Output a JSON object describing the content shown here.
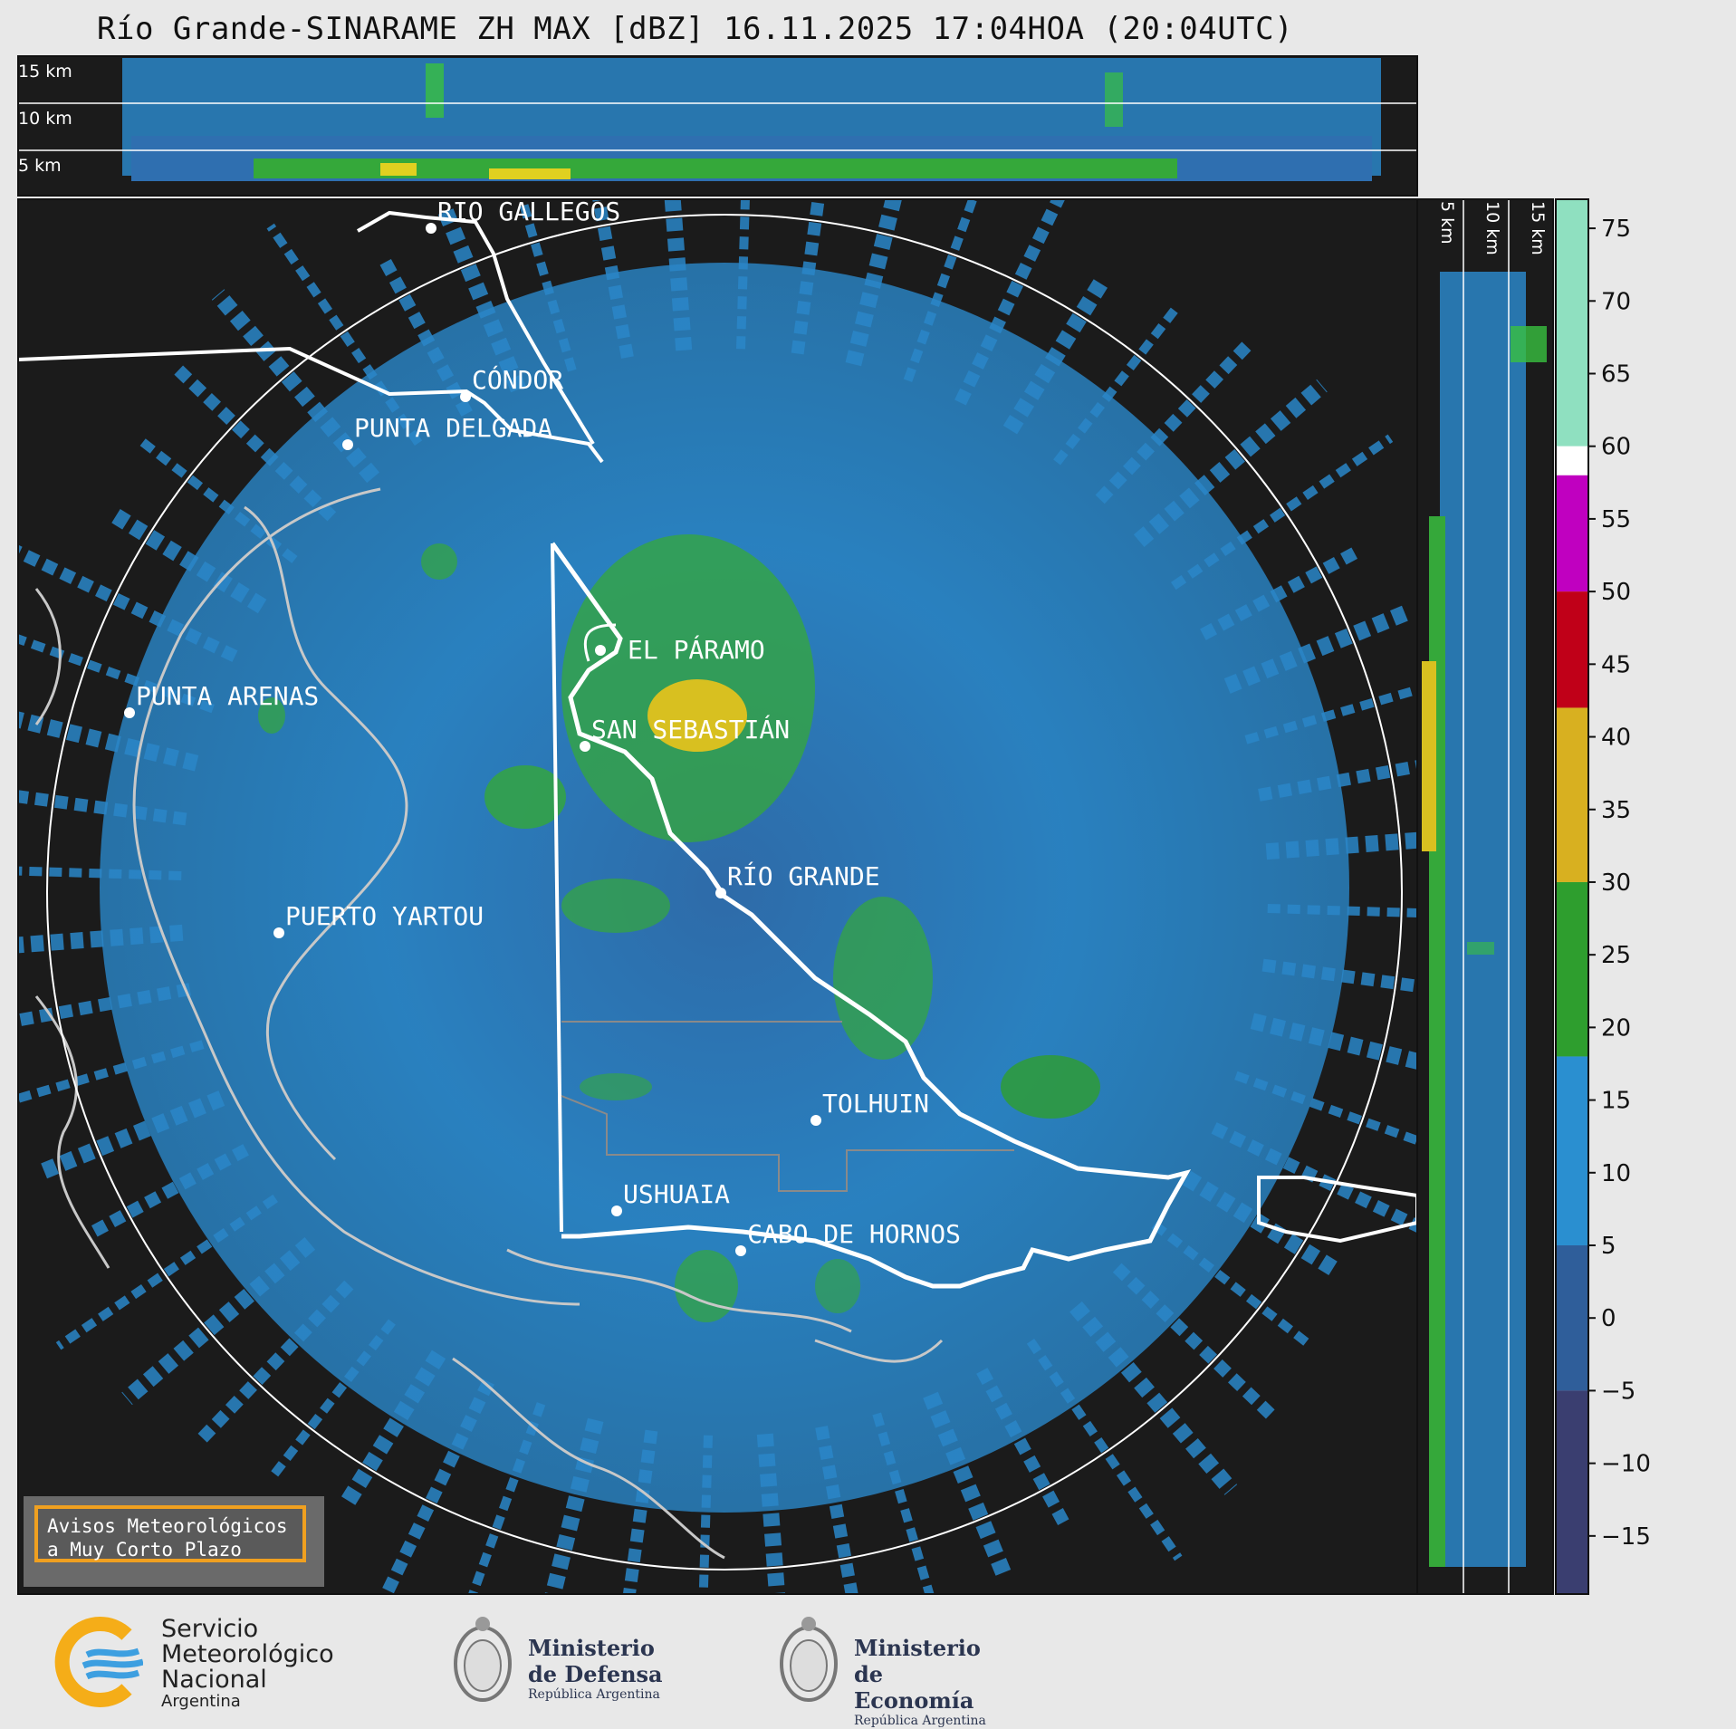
{
  "title": "Río Grande-SINARAME ZH MAX [dBZ] 16.11.2025 17:04HOA (20:04UTC)",
  "top_section_heights": [
    "15 km",
    "10 km",
    "5 km"
  ],
  "side_section_heights": [
    "5 km",
    "10 km",
    "15 km"
  ],
  "colorbar": {
    "unit": "dBZ",
    "ticks": [
      "75",
      "70",
      "65",
      "60",
      "55",
      "50",
      "45",
      "40",
      "35",
      "30",
      "25",
      "20",
      "15",
      "10",
      "5",
      "0",
      "−5",
      "−10",
      "−15"
    ],
    "range": [
      -19,
      77
    ],
    "bands": [
      {
        "from": 60,
        "to": 77,
        "color": "#8fe0c0"
      },
      {
        "from": 58,
        "to": 60,
        "color": "#ffffff"
      },
      {
        "from": 50,
        "to": 58,
        "color": "#c000c0"
      },
      {
        "from": 42,
        "to": 50,
        "color": "#c00018"
      },
      {
        "from": 30,
        "to": 42,
        "color": "#d8b020"
      },
      {
        "from": 18,
        "to": 30,
        "color": "#2e9e2e"
      },
      {
        "from": 5,
        "to": 18,
        "color": "#2a8fd0"
      },
      {
        "from": -5,
        "to": 5,
        "color": "#2f5e9a"
      },
      {
        "from": -19,
        "to": -5,
        "color": "#3a3e70"
      }
    ]
  },
  "cities": [
    {
      "name": "RÍO GALLEGOS"
    },
    {
      "name": "CÓNDOR"
    },
    {
      "name": "PUNTA DELGADA"
    },
    {
      "name": "PUNTA ARENAS"
    },
    {
      "name": "EL PÁRAMO"
    },
    {
      "name": "SAN SEBASTIÁN"
    },
    {
      "name": "RÍO GRANDE"
    },
    {
      "name": "PUERTO YARTOU"
    },
    {
      "name": "TOLHUIN"
    },
    {
      "name": "USHUAIA"
    },
    {
      "name": "CABO DE HORNOS"
    }
  ],
  "warning_box": {
    "line1": "Avisos Meteorológicos",
    "line2": "a Muy Corto Plazo"
  },
  "logos": {
    "smn": {
      "line1": "Servicio",
      "line2": "Meteorológico",
      "line3": "Nacional",
      "line4": "Argentina"
    },
    "defensa": {
      "line1": "Ministerio",
      "line2": "de Defensa",
      "line3": "República Argentina"
    },
    "economia": {
      "line1": "Ministerio",
      "line2": "de Economía",
      "line3": "República Argentina"
    }
  }
}
